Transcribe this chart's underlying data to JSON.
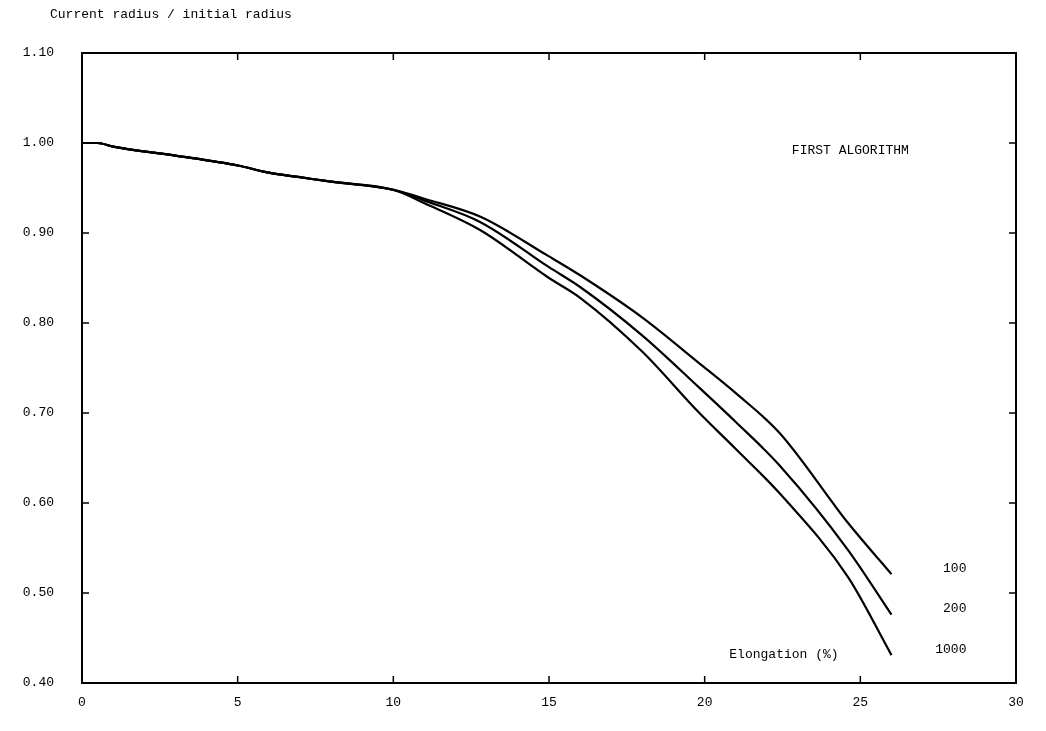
{
  "chart_data": {
    "type": "line",
    "xlabel": "Elongation (%)",
    "ylabel": "Current radius / initial radius",
    "annotations": [
      "FIRST ALGORITHM"
    ],
    "xlim": [
      0,
      30
    ],
    "xticks": [
      0,
      5,
      10,
      15,
      20,
      25,
      30
    ],
    "ylim": [
      0.4,
      1.1
    ],
    "yticks": [
      {
        "value": 0.4,
        "label": "0.40"
      },
      {
        "value": 0.5,
        "label": "0.50"
      },
      {
        "value": 0.6,
        "label": "0.60"
      },
      {
        "value": 0.7,
        "label": "0.70"
      },
      {
        "value": 0.8,
        "label": "0.80"
      },
      {
        "value": 0.9,
        "label": "0.90"
      },
      {
        "value": 1.0,
        "label": "1.00"
      },
      {
        "value": 1.1,
        "label": "1.10"
      }
    ],
    "grid": false,
    "legend": false,
    "marker": "none",
    "line_style": "solid",
    "x": [
      0,
      0.5,
      1,
      3,
      5,
      6,
      7,
      8,
      10,
      11,
      12.8,
      15,
      16,
      18,
      19.8,
      21,
      22.4,
      24.6,
      26
    ],
    "series": [
      {
        "name": "100",
        "color": "#000000",
        "values": [
          1.0,
          1.0,
          0.996,
          0.986,
          0.975,
          0.967,
          0.962,
          0.957,
          0.948,
          0.938,
          0.918,
          0.874,
          0.853,
          0.806,
          0.756,
          0.722,
          0.678,
          0.578,
          0.521
        ]
      },
      {
        "name": "200",
        "color": "#000000",
        "values": [
          1.0,
          1.0,
          0.996,
          0.986,
          0.975,
          0.967,
          0.962,
          0.957,
          0.948,
          0.936,
          0.912,
          0.862,
          0.84,
          0.786,
          0.729,
          0.69,
          0.642,
          0.548,
          0.476
        ]
      },
      {
        "name": "1000",
        "color": "#000000",
        "values": [
          1.0,
          1.0,
          0.996,
          0.986,
          0.975,
          0.967,
          0.962,
          0.957,
          0.948,
          0.933,
          0.903,
          0.85,
          0.828,
          0.768,
          0.701,
          0.66,
          0.611,
          0.518,
          0.431
        ]
      }
    ]
  }
}
